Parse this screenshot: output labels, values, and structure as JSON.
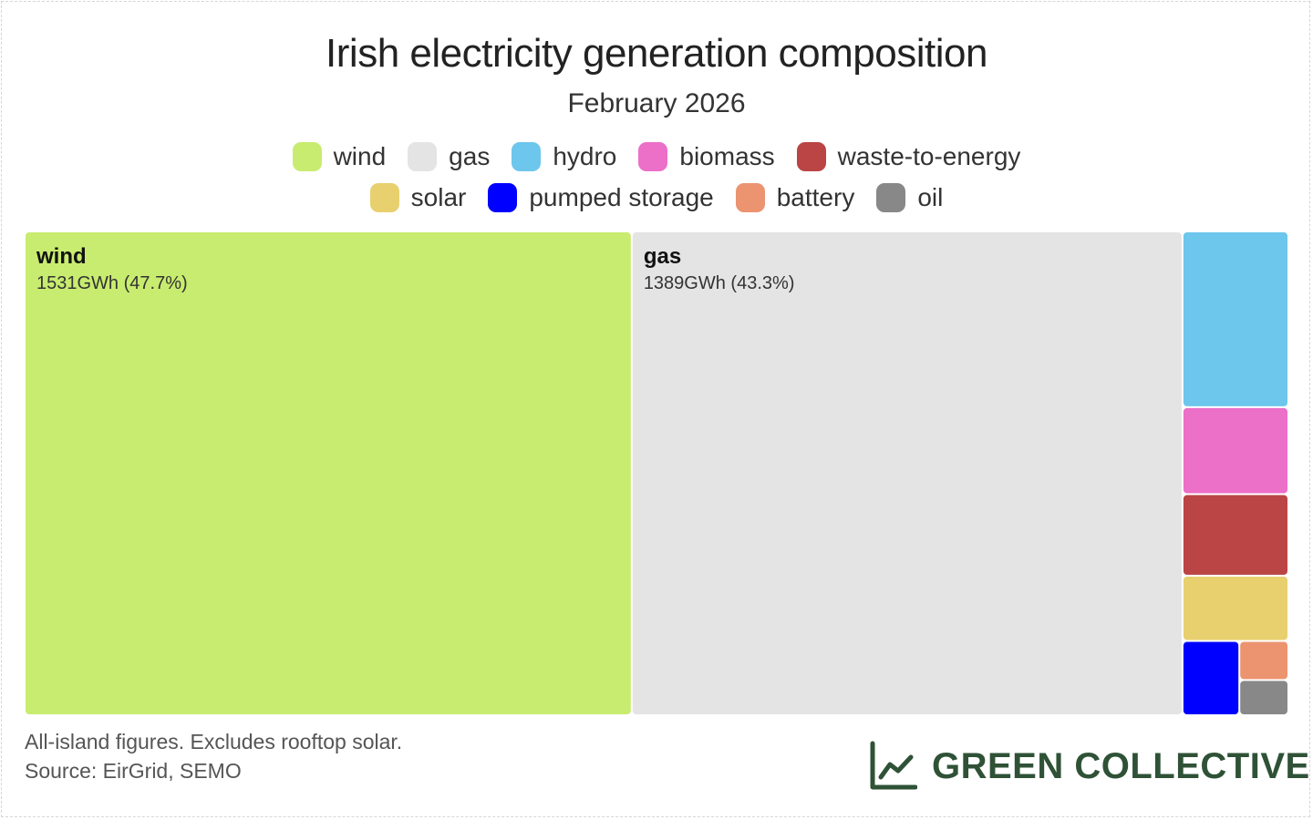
{
  "header": {
    "title": "Irish electricity generation composition",
    "subtitle": "February 2026"
  },
  "legend": {
    "row1": [
      {
        "label": "wind",
        "color": "#c8ec6f"
      },
      {
        "label": "gas",
        "color": "#e4e4e4"
      },
      {
        "label": "hydro",
        "color": "#6dc6ec"
      },
      {
        "label": "biomass",
        "color": "#ec6fc8"
      },
      {
        "label": "waste-to-energy",
        "color": "#bb4444"
      }
    ],
    "row2": [
      {
        "label": "solar",
        "color": "#e8d06f"
      },
      {
        "label": "pumped storage",
        "color": "#0000ff"
      },
      {
        "label": "battery",
        "color": "#ec9370"
      },
      {
        "label": "oil",
        "color": "#888888"
      }
    ]
  },
  "chart_data": {
    "type": "treemap",
    "title": "Irish electricity generation composition",
    "subtitle": "February 2026",
    "unit": "GWh",
    "items": [
      {
        "name": "wind",
        "value": 1531,
        "percent": 47.7,
        "label": "wind",
        "value_label": "1531GWh (47.7%)",
        "color": "#c8ec6f"
      },
      {
        "name": "gas",
        "value": 1389,
        "percent": 43.3,
        "label": "gas",
        "value_label": "1389GWh (43.3%)",
        "color": "#e4e4e4"
      },
      {
        "name": "hydro",
        "value": 97,
        "color": "#6dc6ec"
      },
      {
        "name": "biomass",
        "value": 48,
        "color": "#ec6fc8"
      },
      {
        "name": "waste-to-energy",
        "value": 45,
        "color": "#bb4444"
      },
      {
        "name": "solar",
        "value": 36,
        "color": "#e8d06f"
      },
      {
        "name": "pumped storage",
        "value": 22,
        "color": "#0000ff"
      },
      {
        "name": "battery",
        "value": 10,
        "color": "#ec9370"
      },
      {
        "name": "oil",
        "value": 9,
        "color": "#888888"
      }
    ]
  },
  "footer": {
    "note1": "All-island figures. Excludes rooftop solar.",
    "note2": "Source: EirGrid, SEMO",
    "brand": "GREEN COLLECTIVE",
    "brand_icon": "line-chart-icon",
    "brand_color": "#2f5237"
  }
}
